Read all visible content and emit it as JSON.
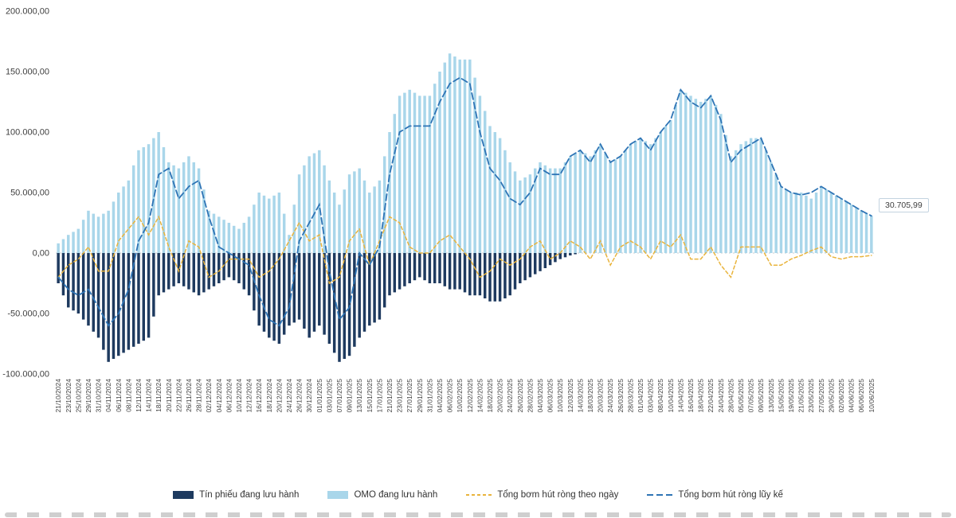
{
  "chart_data": {
    "type": "combo-bar-line",
    "title": "",
    "xlabel": "",
    "ylabel": "",
    "ylim": [
      -100000,
      200000
    ],
    "grid": false,
    "legend_position": "bottom",
    "y_ticks": [
      {
        "value": 200000,
        "label": "200.000,00"
      },
      {
        "value": 150000,
        "label": "150.000,00"
      },
      {
        "value": 100000,
        "label": "100.000,00"
      },
      {
        "value": 50000,
        "label": "50.000,00"
      },
      {
        "value": 0,
        "label": "0,00"
      },
      {
        "value": -50000,
        "label": "-50.000,00"
      },
      {
        "value": -100000,
        "label": "-100.000,00"
      }
    ],
    "categories": [
      "21/10/2024",
      "23/10/2024",
      "25/10/2024",
      "29/10/2024",
      "31/10/2024",
      "04/11/2024",
      "06/11/2024",
      "08/11/2024",
      "12/11/2024",
      "14/11/2024",
      "18/11/2024",
      "20/11/2024",
      "22/11/2024",
      "26/11/2024",
      "28/11/2024",
      "02/12/2024",
      "04/12/2024",
      "06/12/2024",
      "10/12/2024",
      "12/12/2024",
      "16/12/2024",
      "18/12/2024",
      "20/12/2024",
      "24/12/2024",
      "26/12/2024",
      "30/12/2024",
      "01/01/2025",
      "03/01/2025",
      "07/01/2025",
      "09/01/2025",
      "13/01/2025",
      "15/01/2025",
      "17/01/2025",
      "21/01/2025",
      "23/01/2025",
      "27/01/2025",
      "29/01/2025",
      "31/01/2025",
      "04/02/2025",
      "06/02/2025",
      "10/02/2025",
      "12/02/2025",
      "14/02/2025",
      "18/02/2025",
      "20/02/2025",
      "24/02/2025",
      "26/02/2025",
      "28/02/2025",
      "04/03/2025",
      "06/03/2025",
      "10/03/2025",
      "12/03/2025",
      "14/03/2025",
      "18/03/2025",
      "20/03/2025",
      "24/03/2025",
      "26/03/2025",
      "28/03/2025",
      "01/04/2025",
      "03/04/2025",
      "08/04/2025",
      "10/04/2025",
      "14/04/2025",
      "16/04/2025",
      "18/04/2025",
      "22/04/2025",
      "24/04/2025",
      "28/04/2025",
      "05/05/2025",
      "07/05/2025",
      "09/05/2025",
      "13/05/2025",
      "15/05/2025",
      "19/05/2025",
      "21/05/2025",
      "23/05/2025",
      "27/05/2025",
      "29/05/2025",
      "02/06/2025",
      "04/06/2025",
      "06/06/2025",
      "10/06/2025"
    ],
    "series": [
      {
        "name": "Tín phiếu đang lưu hành",
        "type": "bar",
        "color": "#1e3a5f",
        "values": [
          -25000,
          -45000,
          -50000,
          -60000,
          -70000,
          -90000,
          -85000,
          -80000,
          -75000,
          -70000,
          -35000,
          -30000,
          -25000,
          -30000,
          -35000,
          -30000,
          -25000,
          -20000,
          -25000,
          -35000,
          -60000,
          -70000,
          -75000,
          -60000,
          -55000,
          -70000,
          -60000,
          -75000,
          -90000,
          -85000,
          -70000,
          -60000,
          -55000,
          -35000,
          -30000,
          -25000,
          -20000,
          -25000,
          -25000,
          -30000,
          -30000,
          -35000,
          -35000,
          -40000,
          -40000,
          -35000,
          -25000,
          -20000,
          -15000,
          -10000,
          -5000,
          -2000,
          0,
          0,
          0,
          0,
          0,
          0,
          0,
          0,
          0,
          0,
          0,
          0,
          0,
          0,
          0,
          0,
          0,
          0,
          0,
          0,
          0,
          0,
          0,
          0,
          0,
          0,
          0,
          0,
          0,
          0
        ]
      },
      {
        "name": "OMO đang lưu hành",
        "type": "bar",
        "color": "#a9d6ea",
        "values": [
          8000,
          15000,
          20000,
          35000,
          30000,
          35000,
          50000,
          60000,
          85000,
          90000,
          100000,
          75000,
          70000,
          80000,
          70000,
          35000,
          30000,
          25000,
          20000,
          30000,
          50000,
          45000,
          50000,
          15000,
          65000,
          80000,
          85000,
          60000,
          40000,
          65000,
          70000,
          50000,
          60000,
          100000,
          130000,
          135000,
          130000,
          130000,
          150000,
          165000,
          160000,
          160000,
          130000,
          105000,
          95000,
          75000,
          60000,
          65000,
          75000,
          70000,
          70000,
          80000,
          85000,
          80000,
          90000,
          75000,
          80000,
          90000,
          95000,
          90000,
          100000,
          110000,
          135000,
          130000,
          125000,
          130000,
          115000,
          80000,
          90000,
          95000,
          95000,
          75000,
          55000,
          50000,
          50000,
          45000,
          55000,
          50000,
          45000,
          40000,
          35000,
          30706
        ]
      },
      {
        "name": "Tổng bơm hút ròng theo ngày",
        "type": "line",
        "style": "dashed",
        "dash": "4 3",
        "color": "#e9b43c",
        "values": [
          -20000,
          -10000,
          -5000,
          5000,
          -15000,
          -15000,
          10000,
          20000,
          30000,
          15000,
          30000,
          5000,
          -15000,
          10000,
          5000,
          -20000,
          -15000,
          -5000,
          -5000,
          -5000,
          -20000,
          -15000,
          -5000,
          10000,
          25000,
          10000,
          15000,
          -25000,
          -20000,
          10000,
          20000,
          -10000,
          10000,
          30000,
          25000,
          5000,
          0,
          0,
          10000,
          15000,
          5000,
          -5000,
          -20000,
          -15000,
          -5000,
          -10000,
          -5000,
          5000,
          10000,
          -5000,
          0,
          10000,
          5000,
          -5000,
          10000,
          -10000,
          5000,
          10000,
          5000,
          -5000,
          10000,
          5000,
          15000,
          -5000,
          -5000,
          5000,
          -10000,
          -20000,
          5000,
          5000,
          5000,
          -10000,
          -10000,
          -5000,
          -2000,
          2000,
          5000,
          -3000,
          -5000,
          -3000,
          -3000,
          -2000
        ]
      },
      {
        "name": "Tổng bơm hút ròng lũy kế",
        "type": "line",
        "style": "dashed",
        "dash": "8 4",
        "color": "#2e74b5",
        "values": [
          -20000,
          -30000,
          -35000,
          -30000,
          -45000,
          -60000,
          -50000,
          -30000,
          10000,
          25000,
          65000,
          70000,
          45000,
          55000,
          60000,
          30000,
          5000,
          0,
          -5000,
          -10000,
          -35000,
          -55000,
          -60000,
          -45000,
          10000,
          25000,
          40000,
          -15000,
          -55000,
          -45000,
          0,
          -10000,
          5000,
          65000,
          100000,
          105000,
          105000,
          105000,
          125000,
          140000,
          145000,
          140000,
          100000,
          70000,
          60000,
          45000,
          40000,
          50000,
          70000,
          65000,
          65000,
          80000,
          85000,
          75000,
          90000,
          75000,
          80000,
          90000,
          95000,
          85000,
          100000,
          110000,
          135000,
          125000,
          120000,
          130000,
          110000,
          75000,
          85000,
          90000,
          95000,
          75000,
          55000,
          50000,
          48000,
          50000,
          55000,
          50000,
          45000,
          40000,
          35000,
          30705.99
        ]
      }
    ],
    "end_annotation": {
      "series": "Tổng bơm hút ròng lũy kế",
      "value": 30705.99,
      "label": "30.705,99"
    }
  }
}
